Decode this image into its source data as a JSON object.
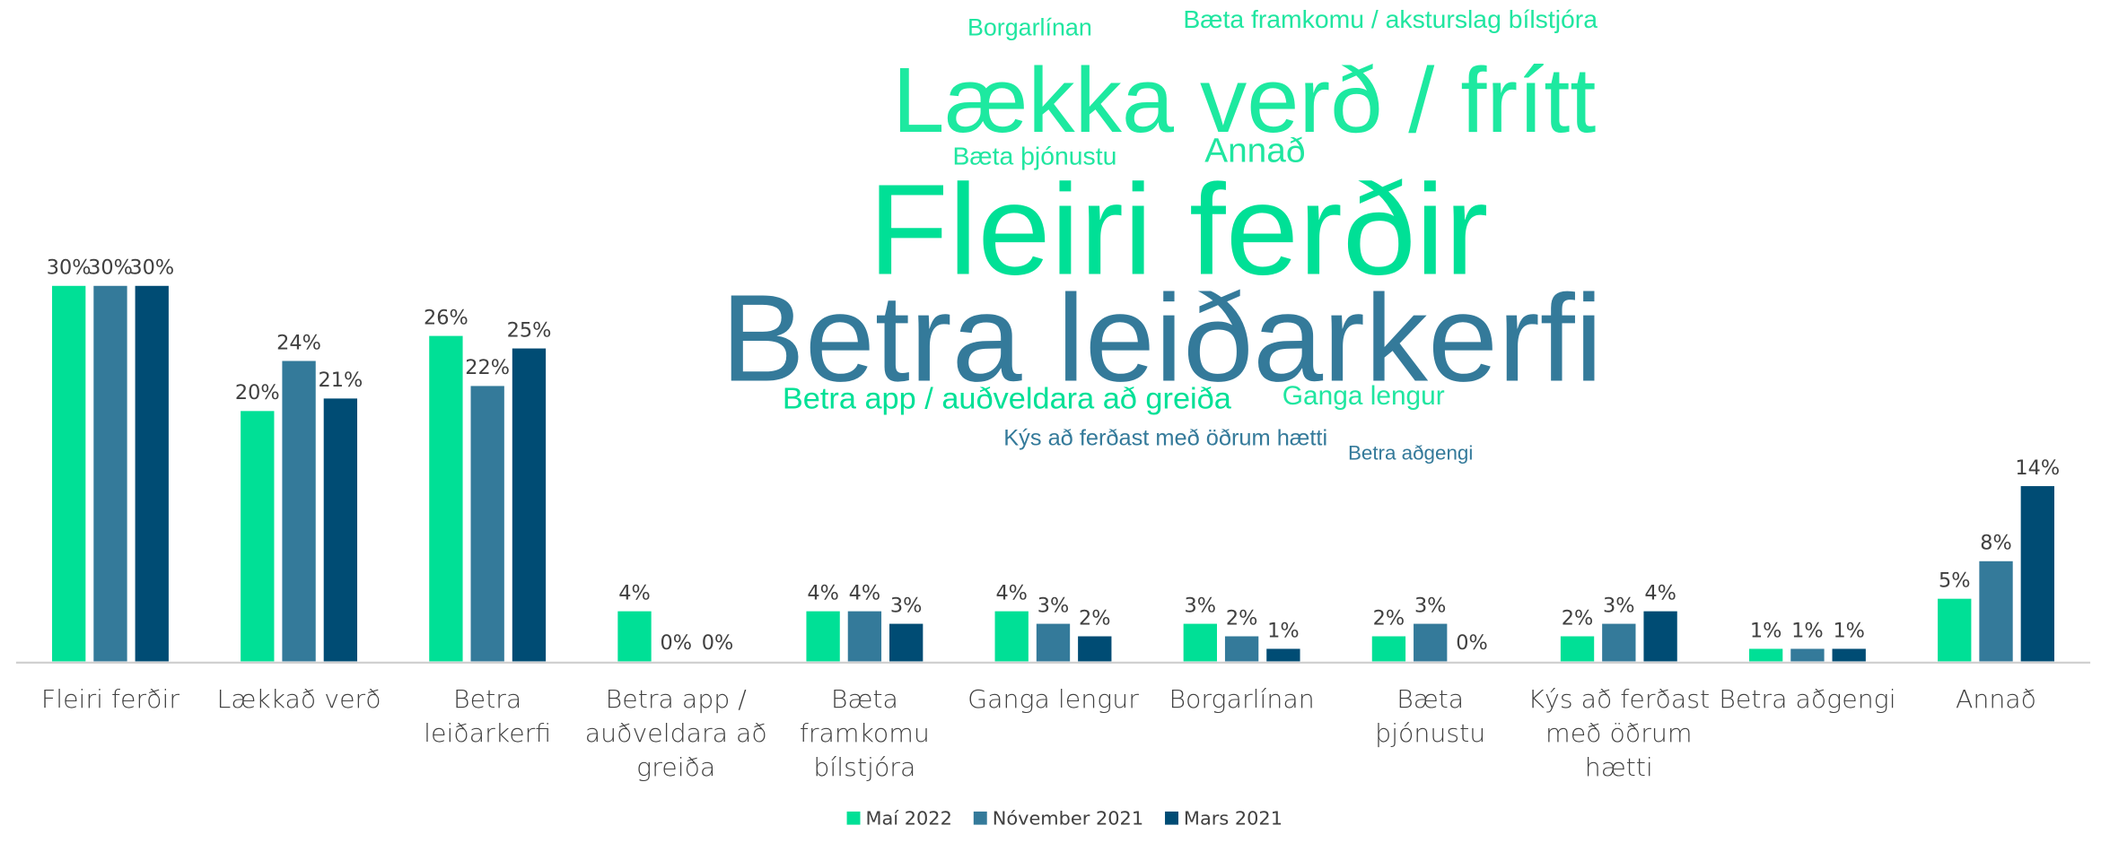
{
  "chart_data": {
    "type": "bar",
    "categories": [
      "Fleiri ferðir",
      "Lækkað verð",
      "Betra leiðarkerfi",
      "Betra app / auðveldara að greiða",
      "Bæta framkomu bílstjóra",
      "Ganga lengur",
      "Borgarlínan",
      "Bæta þjónustu",
      "Kýs að ferðast með öðrum hætti",
      "Betra aðgengi",
      "Annað"
    ],
    "series": [
      {
        "name": "Maí 2022",
        "color": "#00e096",
        "values": [
          30,
          20,
          26,
          4,
          4,
          4,
          3,
          2,
          2,
          1,
          5
        ],
        "value_labels": [
          "30%",
          "20%",
          "26%",
          "4%",
          "4%",
          "4%",
          "3%",
          "2%",
          "2%",
          "1%",
          "5%"
        ]
      },
      {
        "name": "Nóvember 2021",
        "color": "#347a9a",
        "values": [
          30,
          24,
          22,
          0,
          4,
          3,
          2,
          3,
          3,
          1,
          8
        ],
        "value_labels": [
          "30%",
          "24%",
          "22%",
          "0%",
          "4%",
          "3%",
          "2%",
          "3%",
          "3%",
          "1%",
          "8%"
        ]
      },
      {
        "name": "Mars 2021",
        "color": "#004c74",
        "values": [
          30,
          21,
          25,
          0,
          3,
          2,
          1,
          0,
          4,
          1,
          14
        ],
        "value_labels": [
          "30%",
          "21%",
          "25%",
          "0%",
          "3%",
          "2%",
          "1%",
          "0%",
          "4%",
          "1%",
          "14%"
        ]
      }
    ],
    "ylim": [
      0,
      30
    ],
    "legend": "bottom"
  },
  "word_cloud": {
    "words": [
      "Borgarlínan",
      "Bæta framkomu / aksturslag bílstjóra",
      "Lækka verð / frítt",
      "Bæta þjónustu",
      "Annað",
      "Fleiri ferðir",
      "Betra leiðarkerfi",
      "Betra app / auðveldara að greiða",
      "Ganga lengur",
      "Kýs að ferðast með öðrum hætti",
      "Betra aðgengi"
    ]
  }
}
